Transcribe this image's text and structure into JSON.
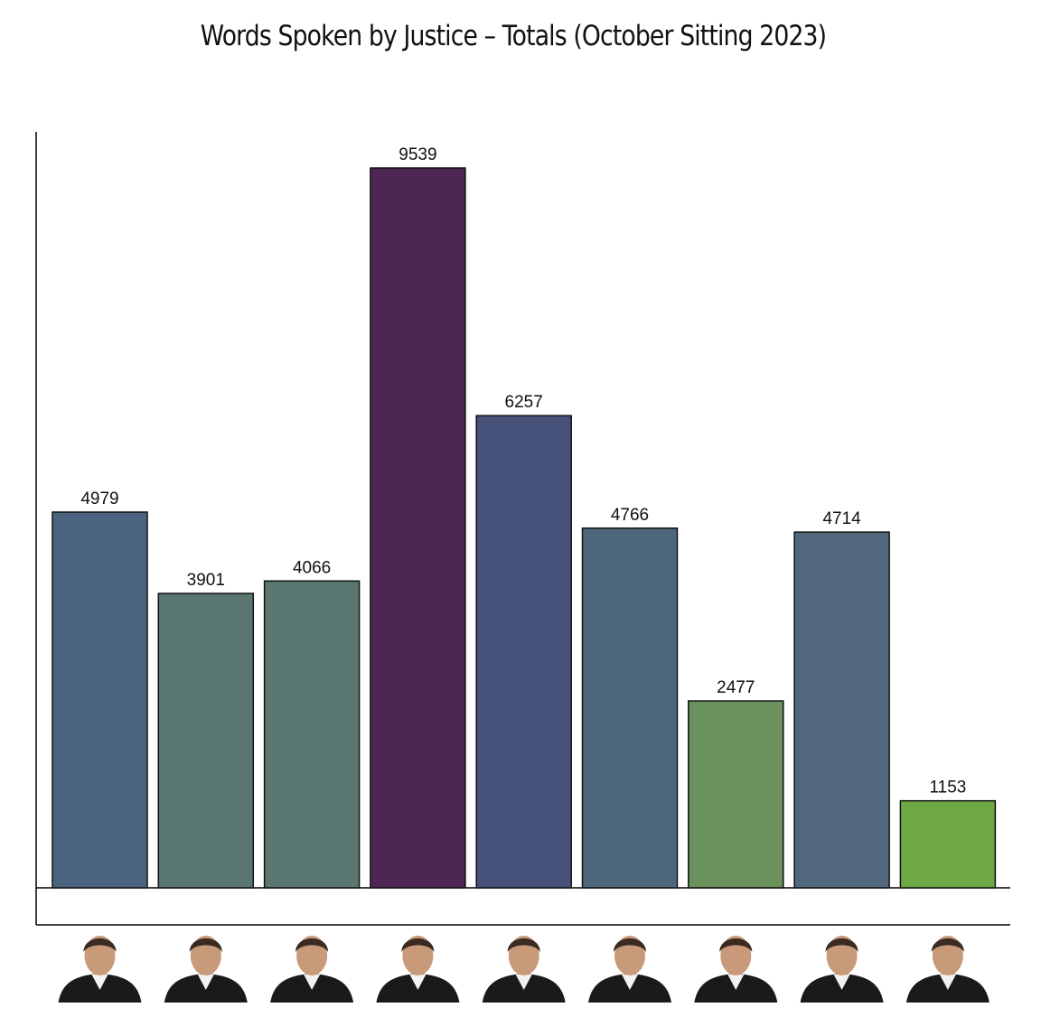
{
  "chart_data": {
    "type": "bar",
    "title": "Words Spoken by Justice – Totals (October Sitting 2023)",
    "xlabel": "",
    "ylabel": "",
    "ylim": [
      0,
      10500
    ],
    "grid": false,
    "legend": "none",
    "categories": [
      "",
      "",
      "",
      "",
      "",
      "",
      "",
      "",
      ""
    ],
    "values": [
      4979,
      3901,
      4066,
      9539,
      6257,
      4766,
      2477,
      4714,
      1153
    ],
    "colors": [
      "#4a6480",
      "#5a7670",
      "#5a7670",
      "#4e2654",
      "#46527a",
      "#4e667c",
      "#6a905c",
      "#52687e",
      "#6ea845"
    ],
    "category_icons": [
      "portrait-icon",
      "portrait-icon",
      "portrait-icon",
      "portrait-icon",
      "portrait-icon",
      "portrait-icon",
      "portrait-icon",
      "portrait-icon",
      "portrait-icon"
    ]
  }
}
